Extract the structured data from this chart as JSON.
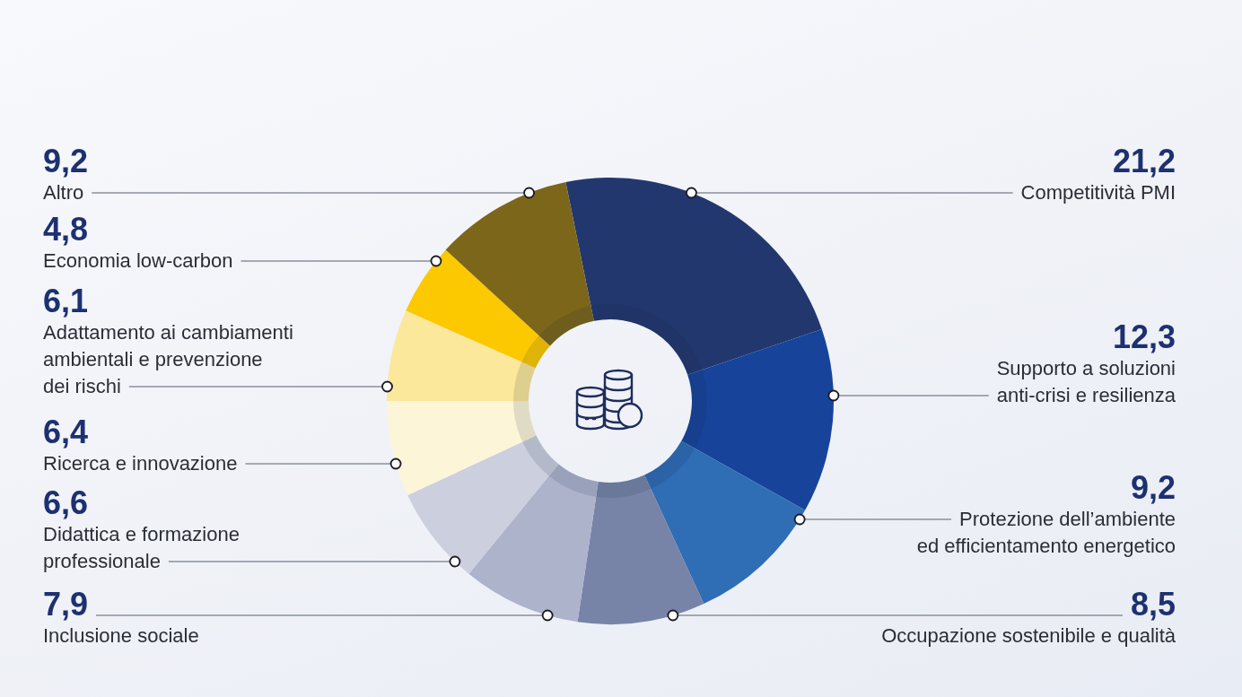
{
  "chart_data": {
    "type": "donut",
    "categories": [
      "Competitività PMI",
      "Supporto a soluzioni\nanti-crisi e resilienza",
      "Protezione dell’ambiente\ned efficientamento energetico",
      "Occupazione sostenibile e qualità",
      "Inclusione sociale",
      "Didattica e formazione\nprofessionale",
      "Ricerca e innovazione",
      "Adattamento ai cambiamenti\nambientali e prevenzione\ndei rischi",
      "Economia low-carbon",
      "Altro"
    ],
    "values": [
      21.2,
      12.3,
      9.2,
      8.5,
      7.9,
      6.6,
      6.4,
      6.1,
      4.8,
      9.2
    ],
    "value_labels": [
      "21,2",
      "12,3",
      "9,2",
      "8,5",
      "7,9",
      "6,6",
      "6,4",
      "6,1",
      "4,8",
      "9,2"
    ],
    "colors": [
      "#23376f",
      "#17449a",
      "#2f6db5",
      "#7784a8",
      "#aeb3cc",
      "#cbcfde",
      "#fdf5d8",
      "#fbe89b",
      "#fcc800",
      "#7c661a"
    ]
  }
}
